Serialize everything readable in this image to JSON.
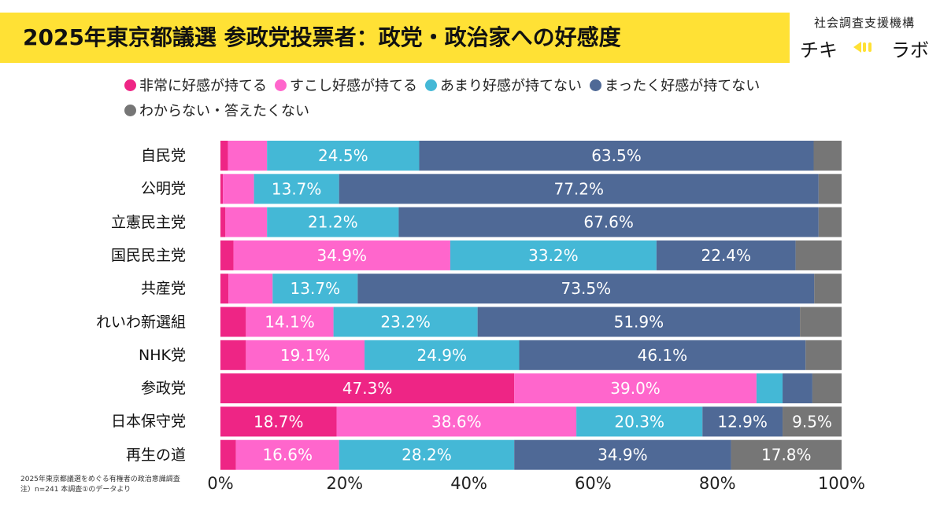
{
  "title": "2025年東京都議選 参政党投票者：政党・政治家への好感度",
  "brand": {
    "org": "社会調査支援機構",
    "name_left": "チキ",
    "name_right": "ラボ",
    "icon": "megaphone-icon"
  },
  "footnote": [
    "2025年東京都議選をめぐる有権者の政治意識調査",
    "注）n=241 本調査①のデータより"
  ],
  "colors": {
    "very_favorable": "#ee2585",
    "somewhat_favorable": "#ff66cc",
    "not_very_favorable": "#44b8d6",
    "not_at_all_favorable": "#4f6996",
    "dont_know": "#767676"
  },
  "chart_data": {
    "type": "bar",
    "orientation": "horizontal",
    "stacked": true,
    "xlim": [
      0,
      100
    ],
    "xticks": [
      "0%",
      "20%",
      "40%",
      "60%",
      "80%",
      "100%"
    ],
    "legend_position": "top",
    "categories": [
      "自民党",
      "公明党",
      "立憲民主党",
      "国民民主党",
      "共産党",
      "れいわ新選組",
      "NHK党",
      "参政党",
      "日本保守党",
      "再生の道"
    ],
    "series": [
      {
        "name": "非常に好感が持てる",
        "color": "#ee2585",
        "values": [
          1.2,
          0.4,
          0.8,
          2.1,
          1.3,
          4.1,
          4.1,
          47.3,
          18.7,
          2.5
        ],
        "labels": [
          "",
          "",
          "",
          "",
          "",
          "",
          "",
          "47.3%",
          "18.7%",
          ""
        ]
      },
      {
        "name": "すこし好感が持てる",
        "color": "#ff66cc",
        "values": [
          6.3,
          5.0,
          6.7,
          34.9,
          7.1,
          14.1,
          19.1,
          39.0,
          38.6,
          16.6
        ],
        "labels": [
          "",
          "",
          "",
          "34.9%",
          "",
          "14.1%",
          "19.1%",
          "39.0%",
          "38.6%",
          "16.6%"
        ]
      },
      {
        "name": "あまり好感が持てない",
        "color": "#44b8d6",
        "values": [
          24.5,
          13.7,
          21.2,
          33.2,
          13.7,
          23.2,
          24.9,
          4.2,
          20.3,
          28.2
        ],
        "labels": [
          "24.5%",
          "13.7%",
          "21.2%",
          "33.2%",
          "13.7%",
          "23.2%",
          "24.9%",
          "",
          "20.3%",
          "28.2%"
        ]
      },
      {
        "name": "まったく好感が持てない",
        "color": "#4f6996",
        "values": [
          63.5,
          77.2,
          67.6,
          22.4,
          73.5,
          51.9,
          46.1,
          4.8,
          12.9,
          34.9
        ],
        "labels": [
          "63.5%",
          "77.2%",
          "67.6%",
          "22.4%",
          "73.5%",
          "51.9%",
          "46.1%",
          "",
          "12.9%",
          "34.9%"
        ]
      },
      {
        "name": "わからない・答えたくない",
        "color": "#767676",
        "values": [
          4.5,
          3.7,
          3.7,
          7.4,
          4.4,
          6.7,
          5.8,
          4.7,
          9.5,
          17.8
        ],
        "labels": [
          "",
          "",
          "",
          "",
          "",
          "",
          "",
          "",
          "9.5%",
          "17.8%"
        ]
      }
    ]
  }
}
